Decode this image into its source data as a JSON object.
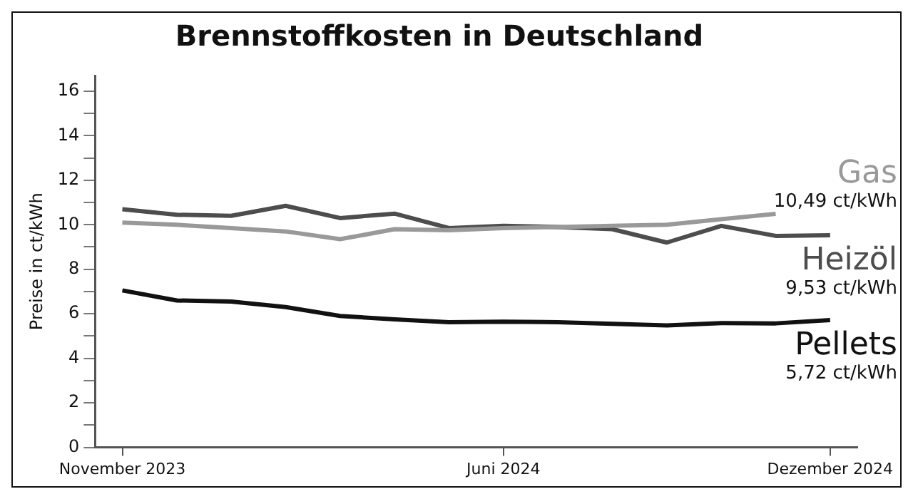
{
  "chart_data": {
    "type": "line",
    "title": "Brennstoffkosten in Deutschland",
    "ylabel": "Preise in ct/kWh",
    "categories": [
      "November 2023",
      null,
      null,
      null,
      null,
      null,
      null,
      "Juni 2024",
      null,
      null,
      null,
      null,
      null,
      "Dezember 2024"
    ],
    "series": [
      {
        "name": "Gas",
        "color": "#999999",
        "values": [
          10.1,
          10.0,
          9.85,
          9.7,
          9.35,
          9.8,
          9.75,
          9.85,
          9.9,
          9.95,
          10.0,
          10.25,
          10.49,
          null
        ]
      },
      {
        "name": "Heizöl",
        "color": "#4d4d4d",
        "values": [
          10.7,
          10.45,
          10.4,
          10.85,
          10.3,
          10.5,
          9.85,
          9.95,
          9.9,
          9.8,
          9.2,
          9.95,
          9.5,
          9.53
        ]
      },
      {
        "name": "Pellets",
        "color": "#111111",
        "values": [
          7.05,
          6.6,
          6.55,
          6.3,
          5.9,
          5.75,
          5.62,
          5.65,
          5.62,
          5.55,
          5.48,
          5.58,
          5.57,
          5.72
        ]
      }
    ],
    "annotations": [
      "10,49 ct/kWh",
      "9,53 ct/kWh",
      "5,72 ct/kWh"
    ],
    "ylim": [
      0,
      16.7
    ],
    "yticks": [
      0,
      {
        "value": 1,
        "label": null
      },
      2,
      {
        "value": 3,
        "label": null
      },
      4,
      {
        "value": 5,
        "label": null
      },
      6,
      {
        "value": 7,
        "label": null
      },
      8,
      {
        "value": 9,
        "label": null
      },
      10,
      {
        "value": 11,
        "label": null
      },
      12,
      {
        "value": 13,
        "label": null
      },
      14,
      {
        "value": 15,
        "label": null
      },
      16
    ],
    "grid": false,
    "legend": false,
    "marker": "none",
    "line_style": "solid"
  }
}
